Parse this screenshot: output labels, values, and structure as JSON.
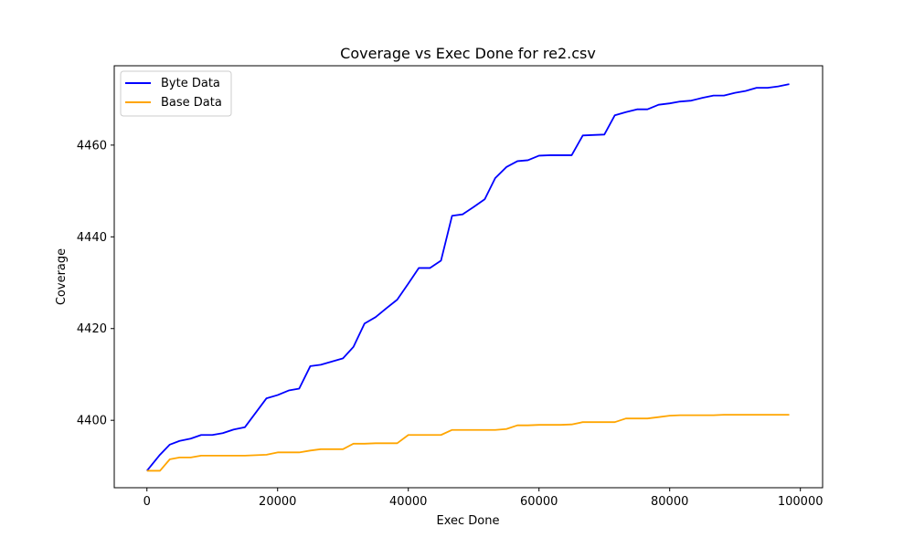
{
  "chart_data": {
    "type": "line",
    "title": "Coverage vs Exec Done for re2.csv",
    "xlabel": "Exec Done",
    "ylabel": "Coverage",
    "xlim": [
      -5000,
      103400
    ],
    "ylim": [
      4385.3,
      4477.3
    ],
    "xticks": [
      0,
      20000,
      40000,
      60000,
      80000,
      100000
    ],
    "xtick_labels": [
      "0",
      "20000",
      "40000",
      "60000",
      "80000",
      "100000"
    ],
    "yticks": [
      4400,
      4420,
      4440,
      4460
    ],
    "ytick_labels": [
      "4400",
      "4420",
      "4440",
      "4460"
    ],
    "grid": false,
    "legend": "top-left",
    "series": [
      {
        "name": "Byte Data",
        "color": "#0000ff",
        "x": [
          0,
          2000,
          3500,
          5000,
          6700,
          8300,
          10000,
          11600,
          13300,
          15000,
          18300,
          20000,
          21700,
          23300,
          25000,
          26600,
          28300,
          30000,
          31600,
          33300,
          35000,
          36700,
          38300,
          40000,
          41600,
          43300,
          45000,
          46700,
          48300,
          50000,
          51700,
          53300,
          55000,
          56700,
          58300,
          60000,
          61700,
          63300,
          65000,
          66700,
          68300,
          70000,
          71600,
          73300,
          75000,
          76600,
          78300,
          80000,
          81600,
          83300,
          85000,
          86700,
          88300,
          90000,
          91600,
          93300,
          95000,
          96600,
          98300
        ],
        "values": [
          4389,
          4392.5,
          4394.7,
          4395.5,
          4396,
          4396.8,
          4396.8,
          4397.2,
          4398,
          4398.5,
          4404.8,
          4405.5,
          4406.5,
          4406.9,
          4411.8,
          4412.1,
          4412.8,
          4413.5,
          4416,
          4421.1,
          4422.5,
          4424.5,
          4426.3,
          4429.8,
          4433.2,
          4433.2,
          4434.8,
          4444.6,
          4444.9,
          4446.5,
          4448.2,
          4452.8,
          4455.2,
          4456.5,
          4456.7,
          4457.7,
          4457.8,
          4457.8,
          4457.8,
          4462.1,
          4462.2,
          4462.3,
          4466.5,
          4467.2,
          4467.8,
          4467.8,
          4468.8,
          4469.1,
          4469.5,
          4469.7,
          4470.3,
          4470.8,
          4470.8,
          4471.4,
          4471.8,
          4472.5,
          4472.5,
          4472.8,
          4473.3
        ]
      },
      {
        "name": "Base Data",
        "color": "#ffa500",
        "x": [
          0,
          2000,
          3500,
          5000,
          6700,
          8300,
          10000,
          11600,
          13300,
          15000,
          18300,
          20000,
          21700,
          23300,
          25000,
          26600,
          28300,
          30000,
          31600,
          33300,
          35000,
          36700,
          38300,
          40000,
          41600,
          43300,
          45000,
          46700,
          48300,
          50000,
          51700,
          53300,
          55000,
          56700,
          58300,
          60000,
          61700,
          63300,
          65000,
          66700,
          68300,
          70000,
          71600,
          73300,
          75000,
          76600,
          78300,
          80000,
          81600,
          83300,
          85000,
          86700,
          88300,
          90000,
          91600,
          93300,
          95000,
          96600,
          98300
        ],
        "values": [
          4389,
          4389,
          4391.5,
          4391.9,
          4391.9,
          4392.3,
          4392.3,
          4392.3,
          4392.3,
          4392.3,
          4392.5,
          4393,
          4393,
          4393,
          4393.4,
          4393.7,
          4393.7,
          4393.7,
          4394.9,
          4394.9,
          4395,
          4395,
          4395,
          4396.8,
          4396.8,
          4396.8,
          4396.8,
          4397.9,
          4397.9,
          4397.9,
          4397.9,
          4397.9,
          4398.1,
          4398.9,
          4398.9,
          4399,
          4399,
          4399,
          4399.1,
          4399.6,
          4399.6,
          4399.6,
          4399.6,
          4400.4,
          4400.4,
          4400.4,
          4400.7,
          4401,
          4401.1,
          4401.1,
          4401.1,
          4401.1,
          4401.2,
          4401.2,
          4401.2,
          4401.2,
          4401.2,
          4401.2,
          4401.2
        ]
      }
    ]
  }
}
